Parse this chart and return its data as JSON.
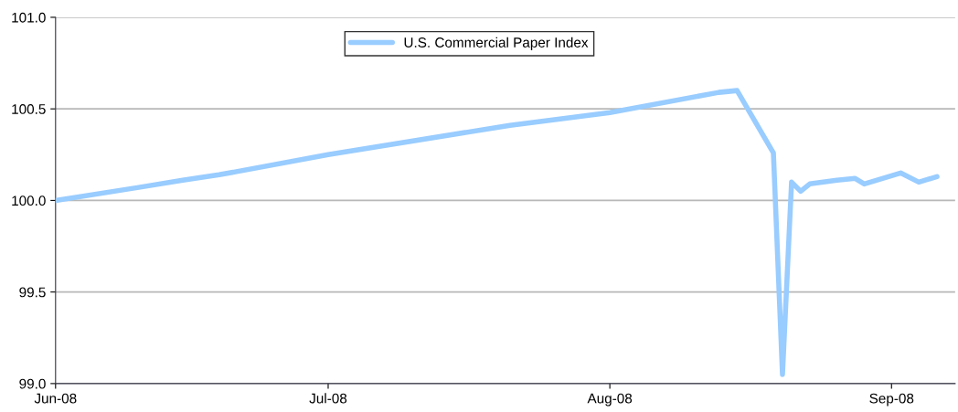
{
  "chart_data": {
    "type": "line",
    "x": [
      "2008-06-01",
      "2008-06-10",
      "2008-06-15",
      "2008-06-19",
      "2008-07-01",
      "2008-07-21",
      "2008-08-01",
      "2008-08-13",
      "2008-08-15",
      "2008-08-19",
      "2008-08-20",
      "2008-08-21",
      "2008-08-22",
      "2008-08-23",
      "2008-08-26",
      "2008-08-28",
      "2008-08-29",
      "2008-09-02",
      "2008-09-04",
      "2008-09-06"
    ],
    "series": [
      {
        "name": "U.S. Commercial Paper Index",
        "color": "#99ccff",
        "values": [
          100.0,
          100.07,
          100.11,
          100.14,
          100.25,
          100.41,
          100.48,
          100.59,
          100.6,
          100.26,
          99.05,
          100.1,
          100.05,
          100.09,
          100.11,
          100.12,
          100.09,
          100.15,
          100.1,
          100.13
        ]
      }
    ],
    "xlim": [
      "2008-06-01",
      "2008-09-08"
    ],
    "xticks": [
      {
        "value": "2008-06-01",
        "label": "Jun-08"
      },
      {
        "value": "2008-07-01",
        "label": "Jul-08"
      },
      {
        "value": "2008-08-01",
        "label": "Aug-08"
      },
      {
        "value": "2008-09-01",
        "label": "Sep-08"
      }
    ],
    "ylim": [
      99.0,
      101.0
    ],
    "yticks": [
      {
        "value": 99.0,
        "label": "99.0"
      },
      {
        "value": 99.5,
        "label": "99.5"
      },
      {
        "value": 100.0,
        "label": "100.0"
      },
      {
        "value": 100.5,
        "label": "100.5"
      },
      {
        "value": 101.0,
        "label": "101.0"
      }
    ],
    "grid": "y",
    "legend": "top",
    "marker": "none",
    "line_style": "solid"
  }
}
